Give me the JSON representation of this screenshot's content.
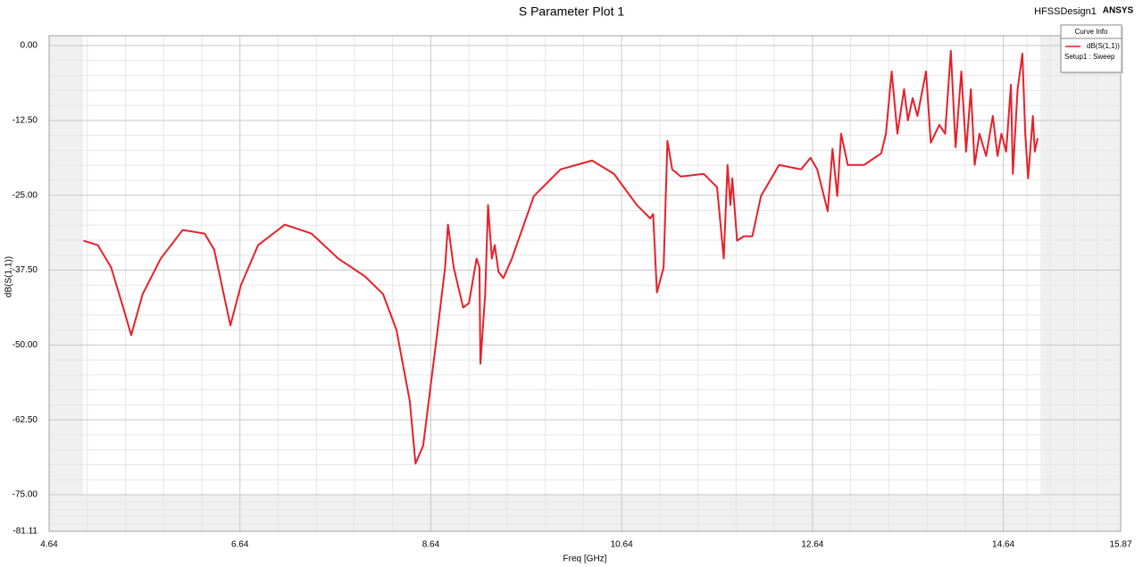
{
  "chart_data": {
    "type": "line",
    "title": "S Parameter Plot 1",
    "design": "HFSSDesign1",
    "brand": "ANSYS",
    "x_label": "Freq [GHz]",
    "y_label": "dB(S(1,1))",
    "legend_title": "Curve Info",
    "legend_setup": "Setup1 : Sweep",
    "grid": true,
    "xlim": [
      4.64,
      15.87
    ],
    "xticks": [
      4.64,
      6.64,
      8.64,
      10.64,
      12.64,
      14.64,
      15.87
    ],
    "ylim": [
      -81.11,
      1.64
    ],
    "yticks": [
      {
        "value": 0,
        "label": "0.00"
      },
      {
        "value": -12.5,
        "label": "-12.50"
      },
      {
        "value": -25,
        "label": "-25.00"
      },
      {
        "value": -37.5,
        "label": "-37.50"
      },
      {
        "value": -50,
        "label": "-50.00"
      },
      {
        "value": -62.5,
        "label": "-62.50"
      },
      {
        "value": -75,
        "label": "-75.00"
      },
      {
        "value": -81.11,
        "label": "-81.11"
      }
    ],
    "x": [
      5.0,
      5.15,
      5.29,
      5.43,
      5.5,
      5.62,
      5.81,
      6.04,
      6.27,
      6.37,
      6.51,
      6.54,
      6.65,
      6.83,
      7.11,
      7.39,
      7.67,
      7.95,
      8.14,
      8.28,
      8.42,
      8.48,
      8.56,
      8.7,
      8.79,
      8.82,
      8.88,
      8.98,
      9.04,
      9.12,
      9.15,
      9.16,
      9.21,
      9.24,
      9.28,
      9.31,
      9.35,
      9.4,
      9.49,
      9.72,
      10.0,
      10.33,
      10.56,
      10.8,
      10.94,
      10.97,
      11.01,
      11.08,
      11.12,
      11.17,
      11.26,
      11.5,
      11.64,
      11.71,
      11.75,
      11.78,
      11.8,
      11.85,
      11.92,
      12.01,
      12.1,
      12.29,
      12.52,
      12.62,
      12.69,
      12.8,
      12.85,
      12.9,
      12.94,
      13.01,
      13.18,
      13.36,
      13.41,
      13.47,
      13.53,
      13.6,
      13.64,
      13.69,
      13.74,
      13.83,
      13.88,
      13.97,
      14.03,
      14.09,
      14.14,
      14.2,
      14.25,
      14.3,
      14.34,
      14.39,
      14.46,
      14.53,
      14.58,
      14.62,
      14.67,
      14.72,
      14.74,
      14.79,
      14.84,
      14.87,
      14.9,
      14.95,
      14.97,
      15.0
    ],
    "series": [
      {
        "name": "dB(S(1,1))",
        "color": "#e8202a",
        "values": [
          -32.59,
          -33.33,
          -37.05,
          -44.49,
          -48.36,
          -41.52,
          -35.57,
          -30.8,
          -31.4,
          -34.08,
          -44.49,
          -46.73,
          -40.03,
          -33.33,
          -29.91,
          -31.4,
          -35.57,
          -38.54,
          -41.52,
          -47.47,
          -59.38,
          -69.79,
          -66.82,
          -48.96,
          -37.05,
          -29.91,
          -37.05,
          -43.75,
          -43.01,
          -35.57,
          -37.05,
          -53.13,
          -41.52,
          -26.64,
          -35.57,
          -33.33,
          -37.8,
          -38.84,
          -35.57,
          -25.15,
          -20.68,
          -19.2,
          -21.43,
          -26.64,
          -28.87,
          -28.13,
          -41.22,
          -37.05,
          -15.92,
          -20.68,
          -21.88,
          -21.43,
          -23.66,
          -35.57,
          -19.94,
          -26.64,
          -22.17,
          -32.59,
          -31.85,
          -31.85,
          -25.15,
          -19.94,
          -20.68,
          -18.75,
          -20.68,
          -27.68,
          -17.26,
          -25.15,
          -14.73,
          -19.94,
          -19.94,
          -18.01,
          -14.73,
          -4.32,
          -14.73,
          -7.29,
          -12.5,
          -8.78,
          -11.76,
          -4.32,
          -16.22,
          -13.24,
          -14.73,
          -0.89,
          -16.96,
          -4.32,
          -17.71,
          -7.29,
          -19.94,
          -14.73,
          -18.45,
          -11.76,
          -18.45,
          -14.73,
          -17.71,
          -6.55,
          -21.43,
          -7.29,
          -1.34,
          -14.73,
          -22.17,
          -11.76,
          -17.71,
          -15.48
        ]
      }
    ]
  }
}
